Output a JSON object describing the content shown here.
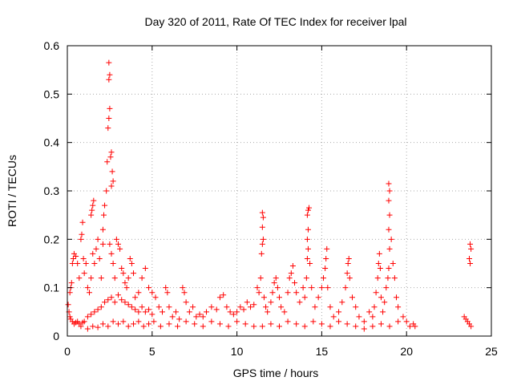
{
  "chart_data": {
    "type": "scatter",
    "title": "Day 320 of 2011, Rate Of TEC Index for receiver lpal",
    "xlabel": "GPS time / hours",
    "ylabel": "ROTI / TECUs",
    "xlim": [
      0,
      25
    ],
    "ylim": [
      0,
      0.6
    ],
    "xticks": [
      0,
      5,
      10,
      15,
      20,
      25
    ],
    "yticks": [
      0,
      0.1,
      0.2,
      0.3,
      0.4,
      0.5,
      0.6
    ],
    "grid": true,
    "marker": "plus",
    "marker_color": "#ff0000",
    "points": [
      [
        0.05,
        0.065
      ],
      [
        0.1,
        0.05
      ],
      [
        0.15,
        0.04
      ],
      [
        0.2,
        0.035
      ],
      [
        0.3,
        0.03
      ],
      [
        0.4,
        0.025
      ],
      [
        0.5,
        0.028
      ],
      [
        0.6,
        0.03
      ],
      [
        0.7,
        0.025
      ],
      [
        0.8,
        0.02
      ],
      [
        0.9,
        0.028
      ],
      [
        1.0,
        0.03
      ],
      [
        0.15,
        0.09
      ],
      [
        0.2,
        0.1
      ],
      [
        0.25,
        0.11
      ],
      [
        0.3,
        0.15
      ],
      [
        0.35,
        0.16
      ],
      [
        0.4,
        0.17
      ],
      [
        0.5,
        0.165
      ],
      [
        0.6,
        0.15
      ],
      [
        0.7,
        0.12
      ],
      [
        0.8,
        0.2
      ],
      [
        0.85,
        0.21
      ],
      [
        0.9,
        0.235
      ],
      [
        0.95,
        0.16
      ],
      [
        1.0,
        0.13
      ],
      [
        1.1,
        0.15
      ],
      [
        1.2,
        0.1
      ],
      [
        1.3,
        0.09
      ],
      [
        1.4,
        0.12
      ],
      [
        1.5,
        0.17
      ],
      [
        1.4,
        0.25
      ],
      [
        1.45,
        0.26
      ],
      [
        1.5,
        0.27
      ],
      [
        1.55,
        0.28
      ],
      [
        1.6,
        0.15
      ],
      [
        1.7,
        0.18
      ],
      [
        1.8,
        0.2
      ],
      [
        1.9,
        0.16
      ],
      [
        2.0,
        0.12
      ],
      [
        2.1,
        0.22
      ],
      [
        2.1,
        0.19
      ],
      [
        2.15,
        0.25
      ],
      [
        2.2,
        0.27
      ],
      [
        2.3,
        0.3
      ],
      [
        2.35,
        0.36
      ],
      [
        2.4,
        0.43
      ],
      [
        2.45,
        0.45
      ],
      [
        2.5,
        0.47
      ],
      [
        2.45,
        0.53
      ],
      [
        2.5,
        0.54
      ],
      [
        2.45,
        0.565
      ],
      [
        2.55,
        0.37
      ],
      [
        2.6,
        0.38
      ],
      [
        2.65,
        0.34
      ],
      [
        2.7,
        0.32
      ],
      [
        2.6,
        0.31
      ],
      [
        2.5,
        0.19
      ],
      [
        2.6,
        0.17
      ],
      [
        2.7,
        0.15
      ],
      [
        2.8,
        0.12
      ],
      [
        2.9,
        0.2
      ],
      [
        3.0,
        0.19
      ],
      [
        3.1,
        0.18
      ],
      [
        3.2,
        0.14
      ],
      [
        3.3,
        0.13
      ],
      [
        3.4,
        0.11
      ],
      [
        3.5,
        0.1
      ],
      [
        3.6,
        0.12
      ],
      [
        3.7,
        0.16
      ],
      [
        3.8,
        0.15
      ],
      [
        3.9,
        0.13
      ],
      [
        4.0,
        0.08
      ],
      [
        4.2,
        0.09
      ],
      [
        4.4,
        0.12
      ],
      [
        4.6,
        0.14
      ],
      [
        4.8,
        0.1
      ],
      [
        5.0,
        0.09
      ],
      [
        5.2,
        0.08
      ],
      [
        5.4,
        0.06
      ],
      [
        1.2,
        0.04
      ],
      [
        1.4,
        0.045
      ],
      [
        1.6,
        0.05
      ],
      [
        1.8,
        0.055
      ],
      [
        2.0,
        0.06
      ],
      [
        2.2,
        0.07
      ],
      [
        2.4,
        0.075
      ],
      [
        2.6,
        0.08
      ],
      [
        2.8,
        0.07
      ],
      [
        3.0,
        0.085
      ],
      [
        3.2,
        0.075
      ],
      [
        3.4,
        0.07
      ],
      [
        3.6,
        0.065
      ],
      [
        3.8,
        0.06
      ],
      [
        4.0,
        0.055
      ],
      [
        4.2,
        0.05
      ],
      [
        4.4,
        0.06
      ],
      [
        4.6,
        0.05
      ],
      [
        4.8,
        0.055
      ],
      [
        5.0,
        0.045
      ],
      [
        1.2,
        0.015
      ],
      [
        1.5,
        0.02
      ],
      [
        1.8,
        0.018
      ],
      [
        2.1,
        0.025
      ],
      [
        2.4,
        0.02
      ],
      [
        2.7,
        0.03
      ],
      [
        3.0,
        0.025
      ],
      [
        3.3,
        0.03
      ],
      [
        3.6,
        0.02
      ],
      [
        3.9,
        0.025
      ],
      [
        4.2,
        0.03
      ],
      [
        4.5,
        0.02
      ],
      [
        4.8,
        0.025
      ],
      [
        5.1,
        0.03
      ],
      [
        5.6,
        0.05
      ],
      [
        5.8,
        0.1
      ],
      [
        5.9,
        0.09
      ],
      [
        6.0,
        0.06
      ],
      [
        6.2,
        0.04
      ],
      [
        6.4,
        0.05
      ],
      [
        6.6,
        0.035
      ],
      [
        6.8,
        0.1
      ],
      [
        6.9,
        0.09
      ],
      [
        7.0,
        0.07
      ],
      [
        7.2,
        0.05
      ],
      [
        7.4,
        0.06
      ],
      [
        7.6,
        0.04
      ],
      [
        7.8,
        0.045
      ],
      [
        8.0,
        0.04
      ],
      [
        5.5,
        0.02
      ],
      [
        6.0,
        0.025
      ],
      [
        6.5,
        0.02
      ],
      [
        7.0,
        0.03
      ],
      [
        7.5,
        0.025
      ],
      [
        8.0,
        0.02
      ],
      [
        8.5,
        0.03
      ],
      [
        9.0,
        0.025
      ],
      [
        9.5,
        0.02
      ],
      [
        10.0,
        0.03
      ],
      [
        10.5,
        0.025
      ],
      [
        11.0,
        0.02
      ],
      [
        8.2,
        0.05
      ],
      [
        8.5,
        0.06
      ],
      [
        8.8,
        0.055
      ],
      [
        9.0,
        0.08
      ],
      [
        9.2,
        0.085
      ],
      [
        9.4,
        0.06
      ],
      [
        9.6,
        0.05
      ],
      [
        9.8,
        0.045
      ],
      [
        10.0,
        0.05
      ],
      [
        10.2,
        0.06
      ],
      [
        10.4,
        0.055
      ],
      [
        10.6,
        0.07
      ],
      [
        10.8,
        0.06
      ],
      [
        11.0,
        0.065
      ],
      [
        11.2,
        0.1
      ],
      [
        11.3,
        0.09
      ],
      [
        11.4,
        0.12
      ],
      [
        11.45,
        0.17
      ],
      [
        11.5,
        0.19
      ],
      [
        11.55,
        0.2
      ],
      [
        11.5,
        0.225
      ],
      [
        11.55,
        0.245
      ],
      [
        11.5,
        0.255
      ],
      [
        11.6,
        0.08
      ],
      [
        11.7,
        0.06
      ],
      [
        11.8,
        0.05
      ],
      [
        12.0,
        0.07
      ],
      [
        12.1,
        0.09
      ],
      [
        12.2,
        0.11
      ],
      [
        12.3,
        0.12
      ],
      [
        12.4,
        0.1
      ],
      [
        12.5,
        0.08
      ],
      [
        12.6,
        0.06
      ],
      [
        12.8,
        0.05
      ],
      [
        13.0,
        0.09
      ],
      [
        13.1,
        0.12
      ],
      [
        13.2,
        0.13
      ],
      [
        13.3,
        0.145
      ],
      [
        13.4,
        0.11
      ],
      [
        13.5,
        0.09
      ],
      [
        13.7,
        0.07
      ],
      [
        13.9,
        0.1
      ],
      [
        14.0,
        0.08
      ],
      [
        14.1,
        0.12
      ],
      [
        14.15,
        0.16
      ],
      [
        14.2,
        0.18
      ],
      [
        14.15,
        0.2
      ],
      [
        14.2,
        0.22
      ],
      [
        14.15,
        0.25
      ],
      [
        14.2,
        0.26
      ],
      [
        14.25,
        0.265
      ],
      [
        14.3,
        0.15
      ],
      [
        14.4,
        0.1
      ],
      [
        14.6,
        0.06
      ],
      [
        14.8,
        0.08
      ],
      [
        15.0,
        0.1
      ],
      [
        15.1,
        0.12
      ],
      [
        15.2,
        0.14
      ],
      [
        15.25,
        0.16
      ],
      [
        15.3,
        0.18
      ],
      [
        15.35,
        0.1
      ],
      [
        15.5,
        0.06
      ],
      [
        15.7,
        0.04
      ],
      [
        16.0,
        0.05
      ],
      [
        16.2,
        0.07
      ],
      [
        16.4,
        0.1
      ],
      [
        16.5,
        0.13
      ],
      [
        16.55,
        0.15
      ],
      [
        16.6,
        0.16
      ],
      [
        16.65,
        0.12
      ],
      [
        16.8,
        0.08
      ],
      [
        17.0,
        0.06
      ],
      [
        17.2,
        0.04
      ],
      [
        17.5,
        0.03
      ],
      [
        17.8,
        0.05
      ],
      [
        11.5,
        0.02
      ],
      [
        12.0,
        0.025
      ],
      [
        12.5,
        0.02
      ],
      [
        13.0,
        0.03
      ],
      [
        13.5,
        0.025
      ],
      [
        14.0,
        0.02
      ],
      [
        14.5,
        0.03
      ],
      [
        15.0,
        0.025
      ],
      [
        15.5,
        0.02
      ],
      [
        16.0,
        0.03
      ],
      [
        16.5,
        0.025
      ],
      [
        17.0,
        0.02
      ],
      [
        17.5,
        0.015
      ],
      [
        18.0,
        0.04
      ],
      [
        18.1,
        0.06
      ],
      [
        18.2,
        0.09
      ],
      [
        18.3,
        0.12
      ],
      [
        18.35,
        0.15
      ],
      [
        18.4,
        0.17
      ],
      [
        18.45,
        0.14
      ],
      [
        18.5,
        0.08
      ],
      [
        18.6,
        0.05
      ],
      [
        18.7,
        0.07
      ],
      [
        18.8,
        0.1
      ],
      [
        18.9,
        0.12
      ],
      [
        18.95,
        0.14
      ],
      [
        19.0,
        0.18
      ],
      [
        18.95,
        0.22
      ],
      [
        19.0,
        0.25
      ],
      [
        18.95,
        0.28
      ],
      [
        19.0,
        0.3
      ],
      [
        18.95,
        0.315
      ],
      [
        19.1,
        0.2
      ],
      [
        19.2,
        0.15
      ],
      [
        19.3,
        0.12
      ],
      [
        19.4,
        0.08
      ],
      [
        19.5,
        0.06
      ],
      [
        18.0,
        0.02
      ],
      [
        18.5,
        0.025
      ],
      [
        19.0,
        0.02
      ],
      [
        19.5,
        0.03
      ],
      [
        19.8,
        0.04
      ],
      [
        20.0,
        0.03
      ],
      [
        20.2,
        0.02
      ],
      [
        20.4,
        0.025
      ],
      [
        20.5,
        0.02
      ],
      [
        23.4,
        0.04
      ],
      [
        23.5,
        0.035
      ],
      [
        23.6,
        0.03
      ],
      [
        23.7,
        0.025
      ],
      [
        23.8,
        0.02
      ],
      [
        23.75,
        0.15
      ],
      [
        23.7,
        0.16
      ],
      [
        23.8,
        0.18
      ],
      [
        23.75,
        0.19
      ]
    ]
  }
}
